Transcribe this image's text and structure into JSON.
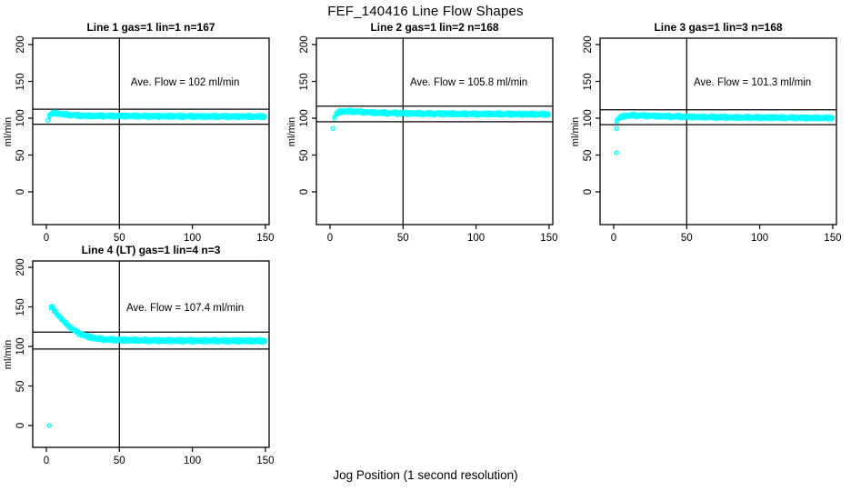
{
  "chart_data": {
    "type": "scatter",
    "title": "FEF_140416  Line Flow Shapes",
    "xlabel": "Jog Position (1 second resolution)",
    "ylabel": "ml/min",
    "x_ticks": [
      0,
      50,
      100,
      150
    ],
    "y_ticks": [
      0,
      50,
      100,
      150,
      200
    ],
    "xlim": [
      0,
      150
    ],
    "ylim": [
      0,
      200
    ],
    "grid": false,
    "legend": "none",
    "point_color": "#00FFFF",
    "line_color": "#000000",
    "vline_x": 50,
    "panels": [
      {
        "title": "Line 1 gas=1 lin=1 n=167",
        "n": 167,
        "ave_flow": 102,
        "annotation": "Ave. Flow =  102  ml/min",
        "ref_upper": 112.2,
        "ref_lower": 91.8,
        "keypoints": [
          [
            2,
            103
          ],
          [
            3,
            105.5
          ],
          [
            5,
            107
          ],
          [
            8,
            106.5
          ],
          [
            12,
            105.2
          ],
          [
            18,
            104
          ],
          [
            25,
            103.3
          ],
          [
            40,
            103
          ],
          [
            60,
            102.8
          ],
          [
            90,
            102.5
          ],
          [
            120,
            102.3
          ],
          [
            150,
            102.2
          ]
        ],
        "outliers": [
          [
            1,
            97
          ]
        ]
      },
      {
        "title": "Line 2 gas=1 lin=2 n=168",
        "n": 168,
        "ave_flow": 105.8,
        "annotation": "Ave. Flow =  105.8  ml/min",
        "ref_upper": 116.4,
        "ref_lower": 95.2,
        "keypoints": [
          [
            3,
            101
          ],
          [
            4,
            105
          ],
          [
            6,
            108.5
          ],
          [
            10,
            109.3
          ],
          [
            15,
            109
          ],
          [
            25,
            108
          ],
          [
            40,
            107
          ],
          [
            60,
            106.3
          ],
          [
            90,
            105.8
          ],
          [
            120,
            105.6
          ],
          [
            150,
            105.4
          ]
        ],
        "outliers": [
          [
            2,
            86
          ]
        ]
      },
      {
        "title": "Line 3 gas=1 lin=3 n=168",
        "n": 168,
        "ave_flow": 101.3,
        "annotation": "Ave. Flow =  101.3  ml/min",
        "ref_upper": 111.4,
        "ref_lower": 91.2,
        "keypoints": [
          [
            2,
            96
          ],
          [
            3,
            99
          ],
          [
            5,
            101.5
          ],
          [
            8,
            103
          ],
          [
            12,
            103.8
          ],
          [
            20,
            103.4
          ],
          [
            35,
            102.5
          ],
          [
            60,
            101.5
          ],
          [
            90,
            101
          ],
          [
            120,
            100.6
          ],
          [
            150,
            100.3
          ]
        ],
        "outliers": [
          [
            2,
            86
          ],
          [
            2,
            53
          ]
        ]
      },
      {
        "title": "Line 4 (LT) gas=1 lin=4 n=3",
        "n": 3,
        "ave_flow": 107.4,
        "annotation": "Ave. Flow =  107.4  ml/min",
        "ref_upper": 118.1,
        "ref_lower": 96.7,
        "keypoints": [
          [
            3,
            150
          ],
          [
            4,
            149
          ],
          [
            5,
            146.5
          ],
          [
            7,
            142
          ],
          [
            9,
            137.5
          ],
          [
            11,
            133.5
          ],
          [
            13,
            129.5
          ],
          [
            16,
            124.5
          ],
          [
            19,
            120.5
          ],
          [
            22,
            117
          ],
          [
            25,
            114.5
          ],
          [
            28,
            112.5
          ],
          [
            32,
            110.8
          ],
          [
            36,
            109.6
          ],
          [
            40,
            108.9
          ],
          [
            46,
            108.3
          ],
          [
            55,
            107.9
          ],
          [
            70,
            107.5
          ],
          [
            100,
            107.2
          ],
          [
            125,
            107.1
          ],
          [
            150,
            107
          ]
        ],
        "outliers": [
          [
            2,
            0
          ]
        ]
      }
    ]
  }
}
